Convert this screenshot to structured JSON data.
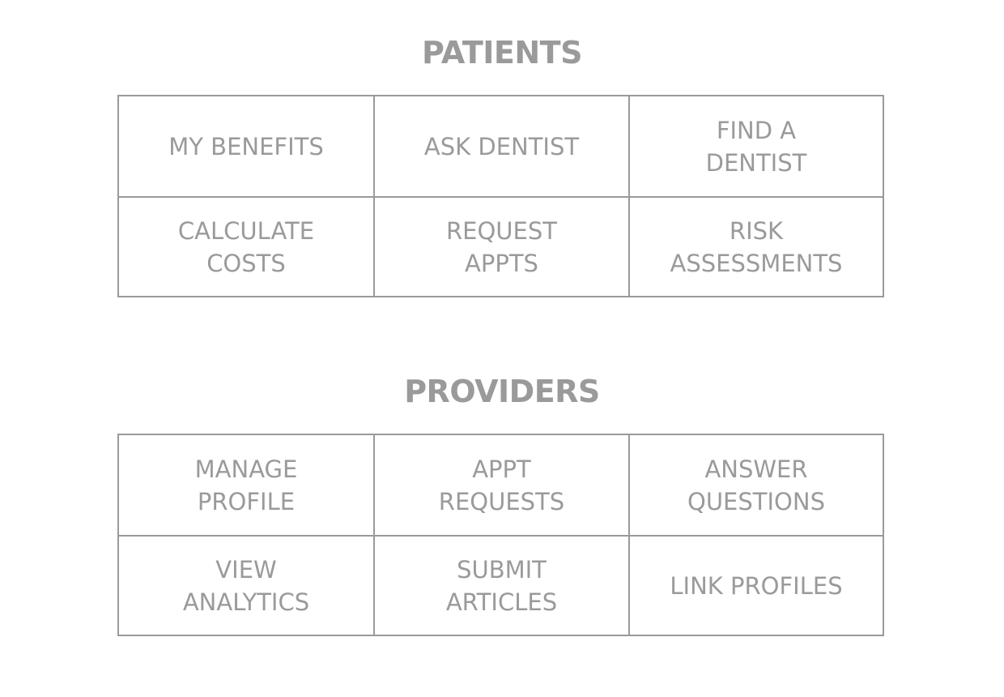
{
  "patients": {
    "title": "PATIENTS",
    "tiles": [
      {
        "label": "MY BENEFITS"
      },
      {
        "label": "ASK DENTIST"
      },
      {
        "label": "FIND A\nDENTIST"
      },
      {
        "label": "CALCULATE\nCOSTS"
      },
      {
        "label": "REQUEST\nAPPTS"
      },
      {
        "label": "RISK\nASSESSMENTS"
      }
    ]
  },
  "providers": {
    "title": "PROVIDERS",
    "tiles": [
      {
        "label": "MANAGE\nPROFILE"
      },
      {
        "label": "APPT\nREQUESTS"
      },
      {
        "label": "ANSWER\nQUESTIONS"
      },
      {
        "label": "VIEW\nANALYTICS"
      },
      {
        "label": "SUBMIT\nARTICLES"
      },
      {
        "label": "LINK PROFILES"
      }
    ]
  }
}
